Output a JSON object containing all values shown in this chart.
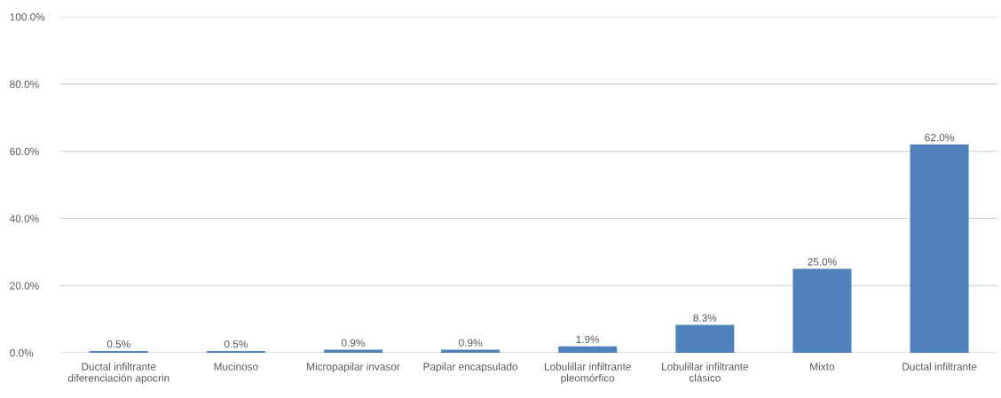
{
  "chart_data": {
    "type": "bar",
    "categories": [
      "Ductal infiltrante\ndiferenciación apocrin",
      "Mucinoso",
      "Micropapilar invasor",
      "Papilar encapsulado",
      "Lobulillar infiltrante\npleomórfico",
      "Lobulillar infiltrante\nclásico",
      "Mixto",
      "Ductal infiltrante"
    ],
    "values": [
      0.5,
      0.5,
      0.9,
      0.9,
      1.9,
      8.3,
      25.0,
      62.0
    ],
    "value_labels": [
      "0.5%",
      "0.5%",
      "0.9%",
      "0.9%",
      "1.9%",
      "8.3%",
      "25.0%",
      "62.0%"
    ],
    "color": "#4f81bd",
    "ylim": [
      0,
      100
    ],
    "yticks": [
      {
        "value": 0,
        "label": "0.0%"
      },
      {
        "value": 20,
        "label": "20.0%"
      },
      {
        "value": 40,
        "label": "40.0%"
      },
      {
        "value": 60,
        "label": "60.0%"
      },
      {
        "value": 80,
        "label": "80.0%"
      },
      {
        "value": 100,
        "label": "100.0%"
      }
    ],
    "grid": "y",
    "legend": false
  }
}
